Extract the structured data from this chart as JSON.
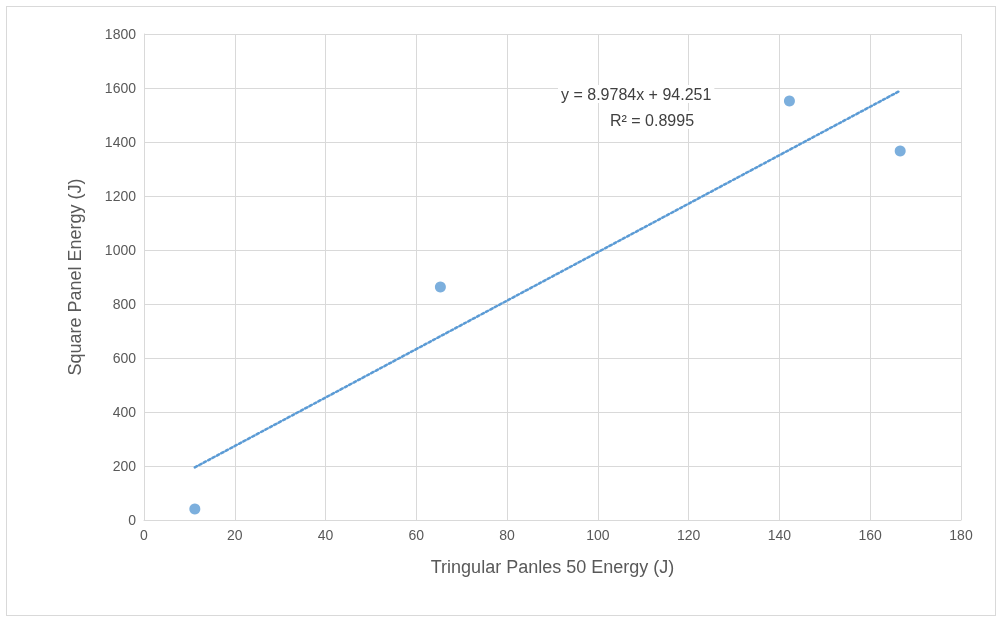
{
  "chart_data": {
    "type": "scatter",
    "xlabel": "Tringular Panles 50 Energy (J)",
    "ylabel": "Square Panel Energy (J)",
    "series": [
      {
        "color": "#5b9bd5",
        "x": [
          11.2,
          65.3,
          142.2,
          166.6
        ],
        "values": [
          41,
          863,
          1552,
          1367
        ],
        "marker": "circle"
      },
      {
        "type": "line",
        "color": "#5b9bd5",
        "x": [
          11.2,
          166.6
        ],
        "values": [
          195,
          1590
        ],
        "marker": "none",
        "line_style": "dotted"
      }
    ],
    "xlim": [
      0,
      180
    ],
    "xticks": [
      0,
      20,
      40,
      60,
      80,
      100,
      120,
      140,
      160,
      180
    ],
    "ylim": [
      0,
      1800
    ],
    "yticks": [
      0,
      200,
      400,
      600,
      800,
      1000,
      1200,
      1400,
      1600,
      1800
    ],
    "grid": true,
    "annotations": [
      "y = 8.9784x + 94.251",
      "R² = 0.8995"
    ]
  }
}
